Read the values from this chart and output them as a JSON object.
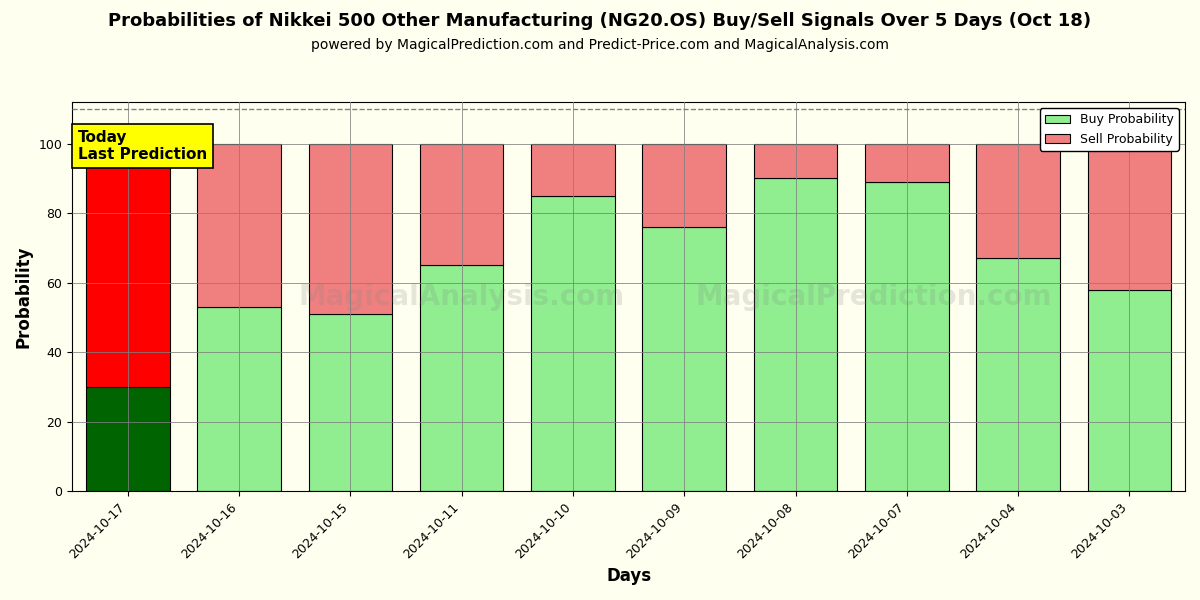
{
  "title": "Probabilities of Nikkei 500 Other Manufacturing (NG20.OS) Buy/Sell Signals Over 5 Days (Oct 18)",
  "subtitle": "powered by MagicalPrediction.com and Predict-Price.com and MagicalAnalysis.com",
  "xlabel": "Days",
  "ylabel": "Probability",
  "dates": [
    "2024-10-17",
    "2024-10-16",
    "2024-10-15",
    "2024-10-11",
    "2024-10-10",
    "2024-10-09",
    "2024-10-08",
    "2024-10-07",
    "2024-10-04",
    "2024-10-03"
  ],
  "buy_values": [
    30,
    53,
    51,
    65,
    85,
    76,
    90,
    89,
    67,
    58
  ],
  "sell_values": [
    70,
    47,
    49,
    35,
    15,
    24,
    10,
    11,
    33,
    42
  ],
  "today_buy_color": "#006400",
  "today_sell_color": "#FF0000",
  "buy_color": "#90EE90",
  "sell_color": "#F08080",
  "bar_edge_color": "#000000",
  "background_color": "#FFFFF0",
  "ylim": [
    0,
    112
  ],
  "yticks": [
    0,
    20,
    40,
    60,
    80,
    100
  ],
  "dashed_line_y": 110,
  "annotation_text": "Today\nLast Prediction",
  "annotation_color": "#FFFF00",
  "legend_buy_label": "Buy Probability",
  "legend_sell_label": "Sell Probability",
  "fig_width": 12,
  "fig_height": 6,
  "title_fontsize": 13,
  "subtitle_fontsize": 10,
  "axis_label_fontsize": 12,
  "tick_fontsize": 9,
  "bar_width": 0.75
}
